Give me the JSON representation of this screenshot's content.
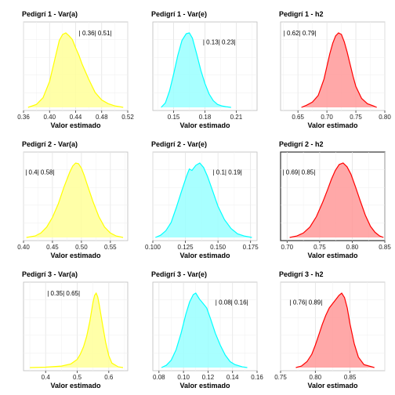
{
  "chart_data": [
    {
      "type": "area",
      "title": "Pedigrí 1 - Var(a)",
      "xlabel": "Valor estimado",
      "xlim": [
        0.36,
        0.52
      ],
      "xticks": [
        "0.36",
        "0.40",
        "0.44",
        "0.48",
        "0.52"
      ],
      "tick_values": [
        0.36,
        0.4,
        0.44,
        0.48,
        0.52
      ],
      "annotation": "| 0.36| 0.51|",
      "annotation_pos": [
        0.445,
        0.15
      ],
      "fill_color": "#ffff99",
      "line_color": "#ffff00",
      "highlight_box": false,
      "x": [
        0.367,
        0.38,
        0.39,
        0.4,
        0.41,
        0.415,
        0.42,
        0.425,
        0.43,
        0.435,
        0.44,
        0.445,
        0.45,
        0.46,
        0.47,
        0.48,
        0.49,
        0.5,
        0.51,
        0.513
      ],
      "y": [
        0.0,
        0.04,
        0.13,
        0.35,
        0.72,
        0.9,
        0.98,
        1.0,
        0.96,
        0.91,
        0.8,
        0.7,
        0.58,
        0.38,
        0.2,
        0.1,
        0.05,
        0.02,
        0.005,
        0.0
      ]
    },
    {
      "type": "area",
      "title": "Pedigrí 1 - Var(e)",
      "xlabel": "Valor estimado",
      "xlim": [
        0.13,
        0.23
      ],
      "xticks": [
        "0.15",
        "0.18",
        "0.21"
      ],
      "tick_values": [
        0.15,
        0.18,
        0.21
      ],
      "annotation": "| 0.13| 0.23|",
      "annotation_pos": [
        0.178,
        0.25
      ],
      "fill_color": "#99ffff",
      "line_color": "#00ffff",
      "highlight_box": false,
      "x": [
        0.138,
        0.142,
        0.146,
        0.15,
        0.154,
        0.158,
        0.162,
        0.165,
        0.168,
        0.172,
        0.176,
        0.18,
        0.184,
        0.188,
        0.192,
        0.196,
        0.2,
        0.205
      ],
      "y": [
        0.0,
        0.06,
        0.22,
        0.45,
        0.7,
        0.9,
        0.99,
        1.0,
        0.93,
        0.72,
        0.5,
        0.32,
        0.18,
        0.09,
        0.04,
        0.02,
        0.01,
        0.0
      ]
    },
    {
      "type": "area",
      "title": "Pedigrí 1 - h2",
      "xlabel": "Valor estimado",
      "xlim": [
        0.62,
        0.8
      ],
      "xticks": [
        "0.65",
        "0.70",
        "0.75",
        "0.80"
      ],
      "tick_values": [
        0.65,
        0.7,
        0.75,
        0.8
      ],
      "annotation": "| 0.62| 0.79|",
      "annotation_pos": [
        0.625,
        0.15
      ],
      "fill_color": "#ff9999",
      "line_color": "#ff0000",
      "highlight_box": false,
      "x": [
        0.656,
        0.665,
        0.675,
        0.685,
        0.695,
        0.7,
        0.705,
        0.71,
        0.715,
        0.72,
        0.725,
        0.73,
        0.735,
        0.74,
        0.745,
        0.75,
        0.76,
        0.77,
        0.78,
        0.786
      ],
      "y": [
        0.0,
        0.03,
        0.07,
        0.16,
        0.38,
        0.55,
        0.72,
        0.86,
        0.96,
        1.0,
        0.98,
        0.88,
        0.74,
        0.58,
        0.42,
        0.28,
        0.12,
        0.05,
        0.02,
        0.0
      ]
    },
    {
      "type": "area",
      "title": "Pedigrí 2 - Var(a)",
      "xlabel": "Valor estimado",
      "xlim": [
        0.4,
        0.58
      ],
      "xticks": [
        "0.40",
        "0.45",
        "0.50",
        "0.55"
      ],
      "tick_values": [
        0.4,
        0.45,
        0.5,
        0.55
      ],
      "annotation": "| 0.4| 0.58|",
      "annotation_pos": [
        0.403,
        0.25
      ],
      "fill_color": "#ffff99",
      "line_color": "#ffff00",
      "highlight_box": false,
      "x": [
        0.405,
        0.42,
        0.43,
        0.44,
        0.45,
        0.46,
        0.47,
        0.48,
        0.485,
        0.49,
        0.495,
        0.5,
        0.505,
        0.51,
        0.52,
        0.53,
        0.54,
        0.55,
        0.56,
        0.572
      ],
      "y": [
        0.0,
        0.02,
        0.06,
        0.14,
        0.27,
        0.45,
        0.68,
        0.88,
        0.96,
        1.0,
        0.99,
        0.93,
        0.83,
        0.71,
        0.48,
        0.28,
        0.14,
        0.06,
        0.02,
        0.0
      ]
    },
    {
      "type": "area",
      "title": "Pedigrí 2 - Var(e)",
      "xlabel": "Valor estimado",
      "xlim": [
        0.1,
        0.18
      ],
      "xticks": [
        "0.100",
        "0.125",
        "0.150",
        "0.175"
      ],
      "tick_values": [
        0.1,
        0.125,
        0.15,
        0.175
      ],
      "annotation": "| 0.1| 0.19|",
      "annotation_pos": [
        0.146,
        0.25
      ],
      "fill_color": "#99ffff",
      "line_color": "#00ffff",
      "highlight_box": false,
      "x": [
        0.102,
        0.106,
        0.11,
        0.114,
        0.118,
        0.122,
        0.126,
        0.128,
        0.13,
        0.133,
        0.136,
        0.139,
        0.142,
        0.146,
        0.15,
        0.155,
        0.16,
        0.165,
        0.17,
        0.176
      ],
      "y": [
        0.0,
        0.03,
        0.09,
        0.2,
        0.4,
        0.62,
        0.83,
        0.92,
        0.9,
        0.97,
        1.0,
        0.94,
        0.82,
        0.62,
        0.42,
        0.24,
        0.12,
        0.05,
        0.02,
        0.0
      ]
    },
    {
      "type": "area",
      "title": "Pedigrí 2 - h2",
      "xlabel": "Valor estimado",
      "xlim": [
        0.69,
        0.85
      ],
      "xticks": [
        "0.70",
        "0.75",
        "0.80",
        "0.85"
      ],
      "tick_values": [
        0.7,
        0.75,
        0.8,
        0.85
      ],
      "annotation": "| 0.69| 0.85|",
      "annotation_pos": [
        0.693,
        0.25
      ],
      "fill_color": "#ff9999",
      "line_color": "#ff0000",
      "highlight_box": true,
      "x": [
        0.704,
        0.715,
        0.725,
        0.735,
        0.745,
        0.755,
        0.762,
        0.768,
        0.774,
        0.78,
        0.786,
        0.792,
        0.798,
        0.805,
        0.812,
        0.82,
        0.828,
        0.835,
        0.842,
        0.848
      ],
      "y": [
        0.0,
        0.02,
        0.06,
        0.14,
        0.28,
        0.48,
        0.64,
        0.78,
        0.9,
        0.98,
        1.0,
        0.95,
        0.85,
        0.68,
        0.5,
        0.3,
        0.15,
        0.07,
        0.02,
        0.0
      ]
    },
    {
      "type": "area",
      "title": "Pedigrí 3 - Var(a)",
      "xlabel": "Valor estimado",
      "xlim": [
        0.33,
        0.66
      ],
      "xticks": [
        "0.4",
        "0.5",
        "0.6"
      ],
      "tick_values": [
        0.4,
        0.5,
        0.6
      ],
      "annotation": "| 0.35| 0.65|",
      "annotation_pos": [
        0.405,
        0.15
      ],
      "fill_color": "#ffff99",
      "line_color": "#ffff00",
      "highlight_box": false,
      "x": [
        0.35,
        0.4,
        0.45,
        0.48,
        0.5,
        0.51,
        0.52,
        0.53,
        0.54,
        0.55,
        0.555,
        0.56,
        0.565,
        0.57,
        0.58,
        0.59,
        0.6,
        0.61,
        0.63,
        0.645
      ],
      "y": [
        0.0,
        0.005,
        0.02,
        0.05,
        0.11,
        0.18,
        0.28,
        0.42,
        0.62,
        0.88,
        0.97,
        1.0,
        0.95,
        0.84,
        0.58,
        0.34,
        0.16,
        0.06,
        0.01,
        0.0
      ]
    },
    {
      "type": "area",
      "title": "Pedigrí 3 - Var(e)",
      "xlabel": "Valor estimado",
      "xlim": [
        0.075,
        0.16
      ],
      "xticks": [
        "0.08",
        "0.10",
        "0.12",
        "0.14",
        "0.16"
      ],
      "tick_values": [
        0.08,
        0.1,
        0.12,
        0.14,
        0.16
      ],
      "annotation": "| 0.08| 0.16|",
      "annotation_pos": [
        0.126,
        0.25
      ],
      "fill_color": "#99ffff",
      "line_color": "#00ffff",
      "highlight_box": false,
      "x": [
        0.082,
        0.086,
        0.09,
        0.094,
        0.098,
        0.102,
        0.105,
        0.108,
        0.11,
        0.113,
        0.116,
        0.119,
        0.122,
        0.126,
        0.13,
        0.134,
        0.138,
        0.142,
        0.148,
        0.152
      ],
      "y": [
        0.0,
        0.03,
        0.1,
        0.24,
        0.46,
        0.72,
        0.88,
        0.98,
        1.0,
        0.92,
        0.86,
        0.8,
        0.66,
        0.46,
        0.3,
        0.17,
        0.08,
        0.04,
        0.01,
        0.0
      ]
    },
    {
      "type": "area",
      "title": "Pedigrí 3 - h2",
      "xlabel": "Valor estimado",
      "xlim": [
        0.75,
        0.9
      ],
      "xticks": [
        "0.75",
        "0.80",
        "0.85"
      ],
      "tick_values": [
        0.75,
        0.8,
        0.85
      ],
      "annotation": "| 0.76| 0.89|",
      "annotation_pos": [
        0.763,
        0.25
      ],
      "fill_color": "#ff9999",
      "line_color": "#ff0000",
      "highlight_box": false,
      "x": [
        0.772,
        0.78,
        0.788,
        0.795,
        0.8,
        0.805,
        0.81,
        0.815,
        0.82,
        0.825,
        0.83,
        0.834,
        0.838,
        0.842,
        0.846,
        0.85,
        0.856,
        0.862,
        0.87,
        0.885
      ],
      "y": [
        0.0,
        0.02,
        0.08,
        0.18,
        0.3,
        0.44,
        0.58,
        0.7,
        0.8,
        0.86,
        0.92,
        0.97,
        1.0,
        0.94,
        0.8,
        0.58,
        0.32,
        0.14,
        0.04,
        0.0
      ]
    }
  ]
}
